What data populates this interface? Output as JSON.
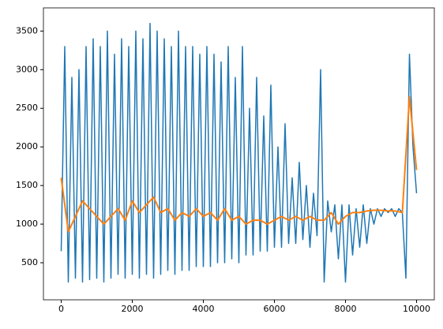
{
  "chart_data": {
    "type": "line",
    "xlim": [
      -500,
      10500
    ],
    "ylim": [
      20,
      3800
    ],
    "xticks": [
      0,
      2000,
      4000,
      6000,
      8000,
      10000
    ],
    "yticks": [
      500,
      1000,
      1500,
      2000,
      2500,
      3000,
      3500
    ],
    "grid": false,
    "series": [
      {
        "color": "#1f77b4",
        "x": [
          0,
          100,
          200,
          300,
          400,
          500,
          600,
          700,
          800,
          900,
          1000,
          1100,
          1200,
          1300,
          1400,
          1500,
          1600,
          1700,
          1800,
          1900,
          2000,
          2100,
          2200,
          2300,
          2400,
          2500,
          2600,
          2700,
          2800,
          2900,
          3000,
          3100,
          3200,
          3300,
          3400,
          3500,
          3600,
          3700,
          3800,
          3900,
          4000,
          4100,
          4200,
          4300,
          4400,
          4500,
          4600,
          4700,
          4800,
          4900,
          5000,
          5100,
          5200,
          5300,
          5400,
          5500,
          5600,
          5700,
          5800,
          5900,
          6000,
          6100,
          6200,
          6300,
          6400,
          6500,
          6600,
          6700,
          6800,
          6900,
          7000,
          7100,
          7200,
          7300,
          7400,
          7500,
          7600,
          7700,
          7800,
          7900,
          8000,
          8100,
          8200,
          8300,
          8400,
          8500,
          8600,
          8700,
          8800,
          8900,
          9000,
          9100,
          9200,
          9300,
          9400,
          9500,
          9600,
          9700,
          9800,
          9900,
          10000
        ],
        "values": [
          650,
          3300,
          250,
          2900,
          300,
          3000,
          250,
          3300,
          280,
          3400,
          300,
          3300,
          250,
          3500,
          300,
          3200,
          350,
          3400,
          300,
          3300,
          350,
          3500,
          300,
          3400,
          350,
          3600,
          300,
          3500,
          350,
          3400,
          400,
          3300,
          350,
          3500,
          400,
          3300,
          400,
          3300,
          450,
          3200,
          450,
          3300,
          450,
          3200,
          500,
          3100,
          500,
          3300,
          550,
          2900,
          500,
          3300,
          600,
          2500,
          600,
          2900,
          650,
          2400,
          650,
          2800,
          700,
          2000,
          700,
          2300,
          750,
          1600,
          750,
          1800,
          800,
          1500,
          700,
          1400,
          850,
          3000,
          250,
          1300,
          900,
          1250,
          550,
          1250,
          250,
          1250,
          600,
          1200,
          700,
          1250,
          750,
          1200,
          1000,
          1200,
          1100,
          1200,
          1150,
          1200,
          1100,
          1200,
          1150,
          300,
          3200,
          2000,
          1400
        ]
      },
      {
        "color": "#ff7f0e",
        "x": [
          0,
          200,
          400,
          600,
          800,
          1000,
          1200,
          1400,
          1600,
          1800,
          2000,
          2200,
          2400,
          2600,
          2800,
          3000,
          3200,
          3400,
          3600,
          3800,
          4000,
          4200,
          4400,
          4600,
          4800,
          5000,
          5200,
          5400,
          5600,
          5800,
          6000,
          6200,
          6400,
          6600,
          6800,
          7000,
          7200,
          7400,
          7600,
          7800,
          8000,
          8200,
          8400,
          8600,
          8800,
          9000,
          9200,
          9400,
          9600,
          9800,
          10000
        ],
        "values": [
          1600,
          900,
          1100,
          1300,
          1200,
          1100,
          1000,
          1100,
          1200,
          1050,
          1300,
          1150,
          1250,
          1350,
          1150,
          1200,
          1050,
          1150,
          1100,
          1200,
          1100,
          1150,
          1050,
          1200,
          1050,
          1100,
          1000,
          1050,
          1050,
          1000,
          1050,
          1100,
          1050,
          1100,
          1050,
          1100,
          1050,
          1050,
          1150,
          1000,
          1100,
          1150,
          1150,
          1170,
          1180,
          1180,
          1170,
          1170,
          1150,
          2650,
          1700
        ]
      }
    ]
  }
}
